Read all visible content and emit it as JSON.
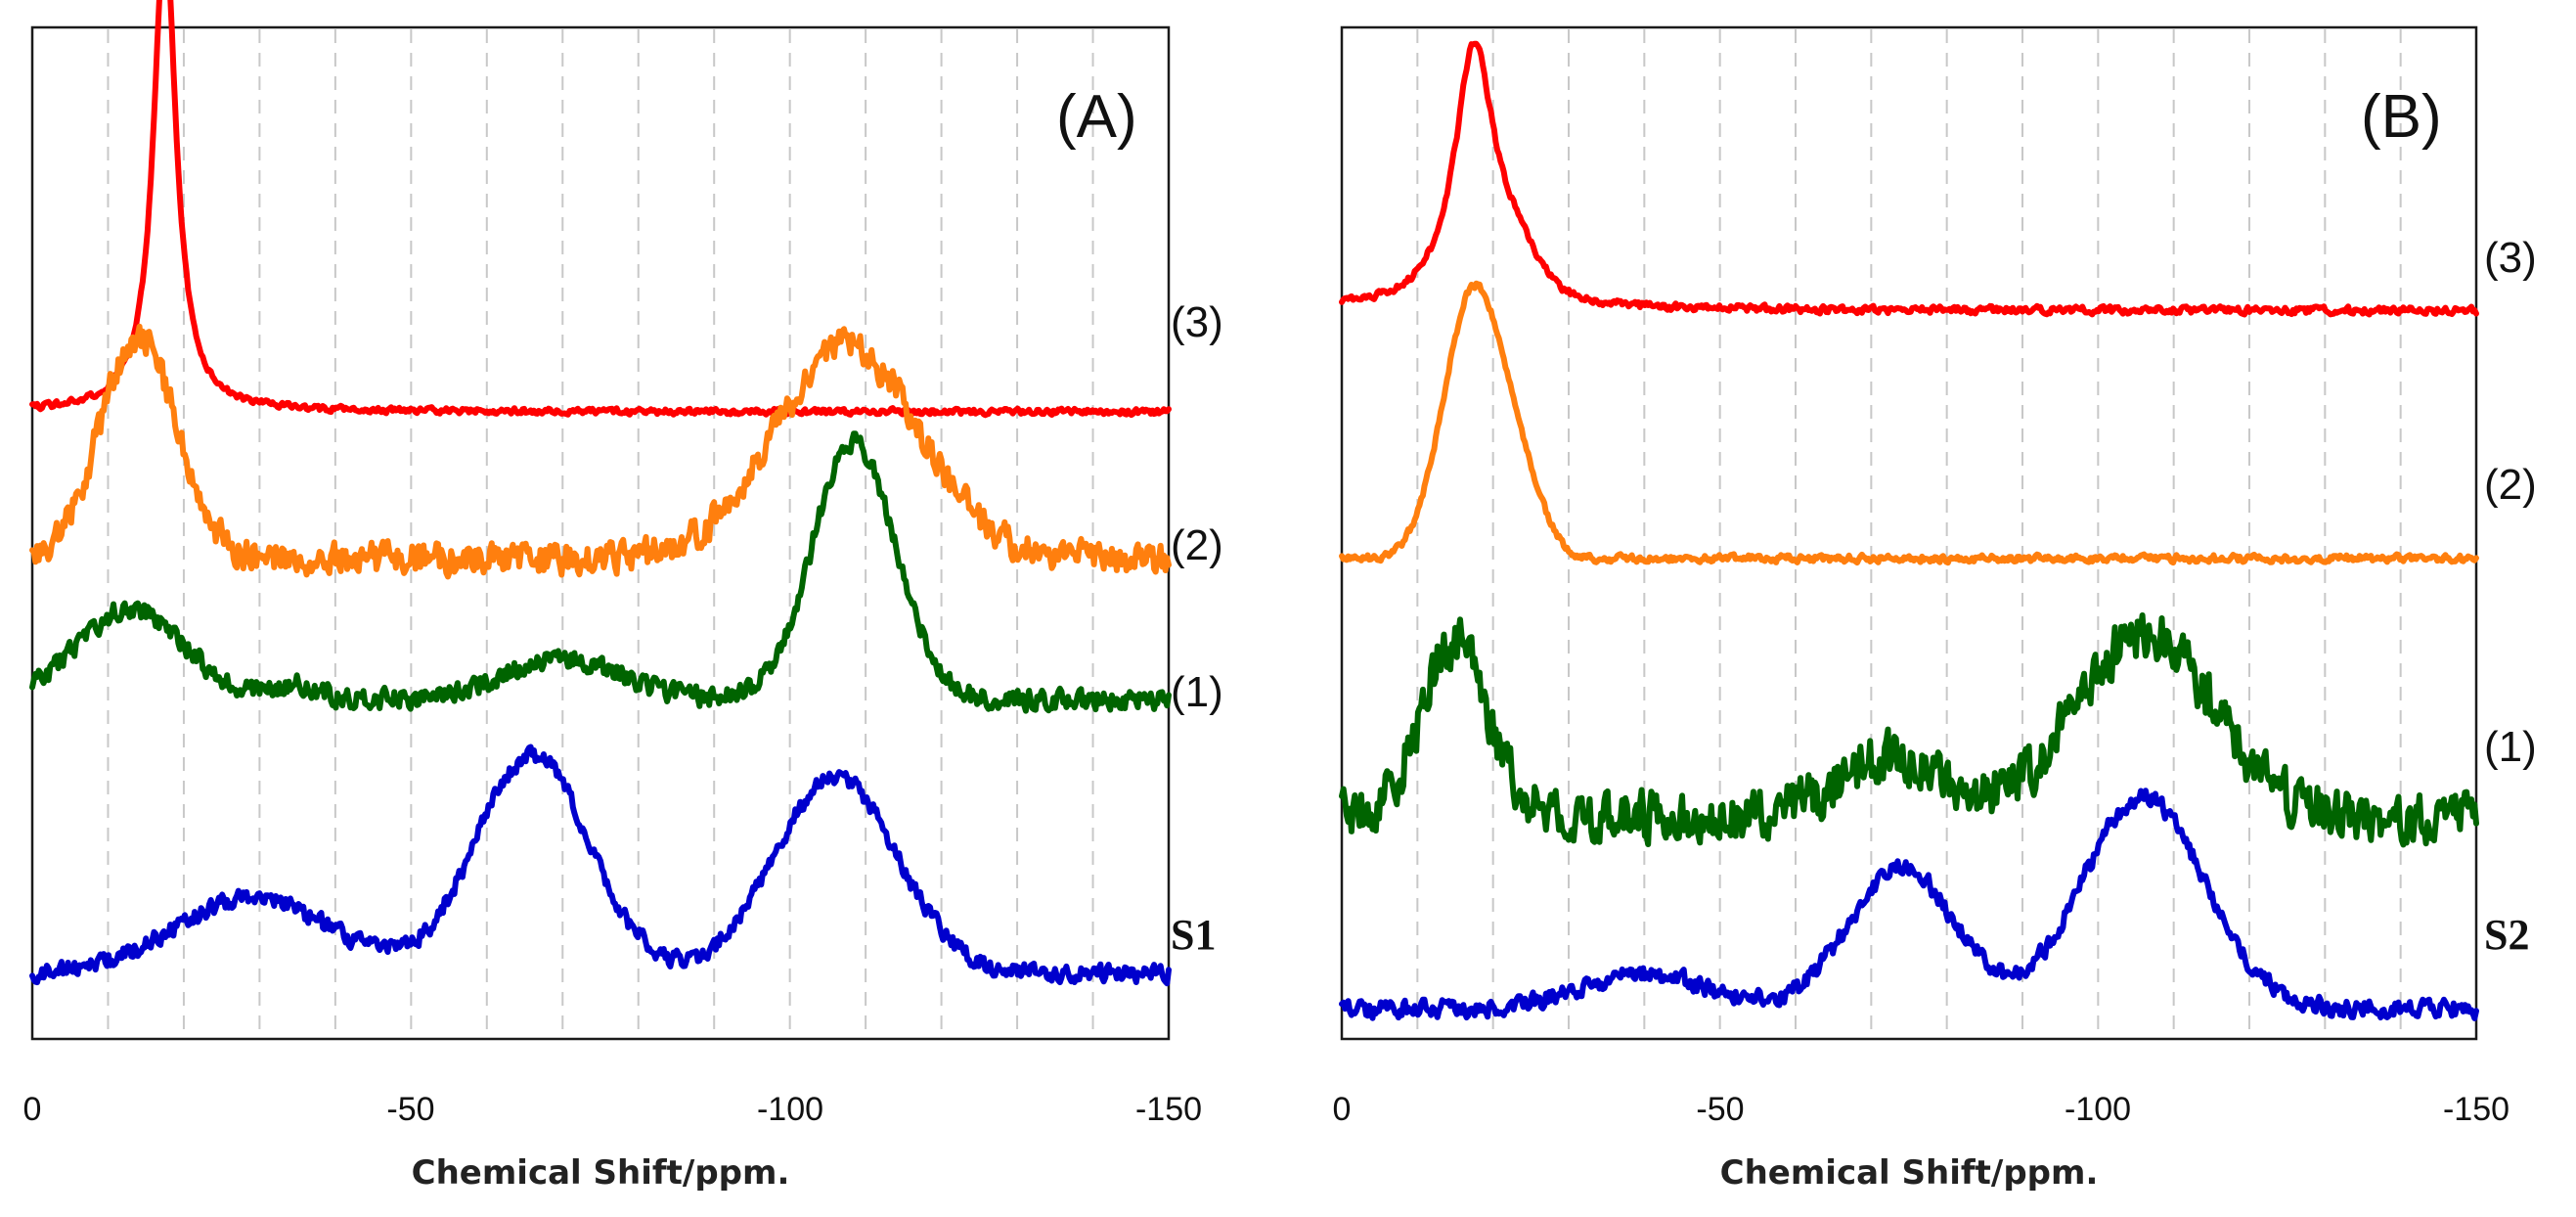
{
  "chart_data": [
    {
      "type": "line",
      "panel": "(A)",
      "xlabel": "Chemical Shift/ppm.",
      "ylabel": "",
      "xlim": [
        0,
        -150
      ],
      "xticks": [
        0,
        -50,
        -100,
        -150
      ],
      "grid": "vertical dashed every 10 ppm",
      "series": [
        {
          "name": "(3)",
          "color": "#ff0000",
          "baseline": 0.62,
          "noise": 0.004,
          "seed": 3,
          "peaks": [
            {
              "center": -17.5,
              "amplitude": 0.475,
              "width": 1.8,
              "shape": "lorentz"
            }
          ]
        },
        {
          "name": "(2)",
          "color": "#ff7f0e",
          "baseline": 0.475,
          "noise": 0.022,
          "seed": 2,
          "peaks": [
            {
              "center": -14,
              "amplitude": 0.22,
              "width": 5,
              "shape": "gauss"
            },
            {
              "center": -107.5,
              "amplitude": 0.21,
              "width": 9.5,
              "shape": "gauss"
            }
          ]
        },
        {
          "name": "(1)",
          "color": "#006400",
          "baseline": 0.335,
          "noise": 0.014,
          "seed": 1,
          "peaks": [
            {
              "center": -13,
              "amplitude": 0.09,
              "width": 7,
              "shape": "gauss"
            },
            {
              "center": -35,
              "amplitude": 0.015,
              "width": 3,
              "shape": "gauss"
            },
            {
              "center": -70,
              "amplitude": 0.04,
              "width": 8,
              "shape": "gauss"
            },
            {
              "center": -108.5,
              "amplitude": 0.255,
              "width": 5.5,
              "shape": "gauss"
            }
          ]
        },
        {
          "name": "S1",
          "color": "#0000cd",
          "baseline": 0.065,
          "noise": 0.012,
          "seed": 4,
          "peaks": [
            {
              "center": -29,
              "amplitude": 0.075,
              "width": 10,
              "shape": "gauss"
            },
            {
              "center": -66,
              "amplitude": 0.215,
              "width": 7.5,
              "shape": "gauss"
            },
            {
              "center": -106,
              "amplitude": 0.195,
              "width": 8,
              "shape": "gauss"
            }
          ]
        }
      ]
    },
    {
      "type": "line",
      "panel": "(B)",
      "xlabel": "Chemical Shift/ppm.",
      "ylabel": "",
      "xlim": [
        0,
        -150
      ],
      "xticks": [
        0,
        -50,
        -100,
        -150
      ],
      "grid": "vertical dashed every 10 ppm",
      "series": [
        {
          "name": "(3)",
          "color": "#ff0000",
          "baseline": 0.72,
          "noise": 0.005,
          "seed": 13,
          "peaks": [
            {
              "center": -17.5,
              "amplitude": 0.26,
              "width": 3.2,
              "shape": "lorentz"
            },
            {
              "center": -23,
              "amplitude": 0.035,
              "width": 3,
              "shape": "gauss"
            }
          ]
        },
        {
          "name": "(2)",
          "color": "#ff7f0e",
          "baseline": 0.475,
          "noise": 0.005,
          "seed": 12,
          "peaks": [
            {
              "center": -17.5,
              "amplitude": 0.265,
              "width": 4,
              "shape": "gauss"
            },
            {
              "center": -24,
              "amplitude": 0.05,
              "width": 3,
              "shape": "gauss"
            }
          ]
        },
        {
          "name": "(1)",
          "color": "#006400",
          "baseline": 0.22,
          "noise": 0.035,
          "seed": 11,
          "peaks": [
            {
              "center": -15,
              "amplitude": 0.17,
              "width": 4.5,
              "shape": "gauss"
            },
            {
              "center": -73,
              "amplitude": 0.06,
              "width": 7,
              "shape": "gauss"
            },
            {
              "center": -106,
              "amplitude": 0.18,
              "width": 9,
              "shape": "gauss"
            }
          ]
        },
        {
          "name": "S2",
          "color": "#0000cd",
          "baseline": 0.03,
          "noise": 0.012,
          "seed": 14,
          "peaks": [
            {
              "center": -40,
              "amplitude": 0.035,
              "width": 8,
              "shape": "gauss"
            },
            {
              "center": -74,
              "amplitude": 0.14,
              "width": 7,
              "shape": "gauss"
            },
            {
              "center": -106,
              "amplitude": 0.21,
              "width": 8,
              "shape": "gauss"
            }
          ]
        }
      ]
    }
  ],
  "panels": [
    {
      "letter": "(A)",
      "tick_labels": [
        "0",
        "-50",
        "-100",
        "-150"
      ],
      "axis_title": "Chemical Shift/ppm.",
      "trace_labels": [
        "(3)",
        "(2)",
        "(1)"
      ],
      "sample_label": "S1"
    },
    {
      "letter": "(B)",
      "tick_labels": [
        "0",
        "-50",
        "-100",
        "-150"
      ],
      "axis_title": "Chemical Shift/ppm.",
      "trace_labels": [
        "(3)",
        "(2)",
        "(1)"
      ],
      "sample_label": "S2"
    }
  ]
}
